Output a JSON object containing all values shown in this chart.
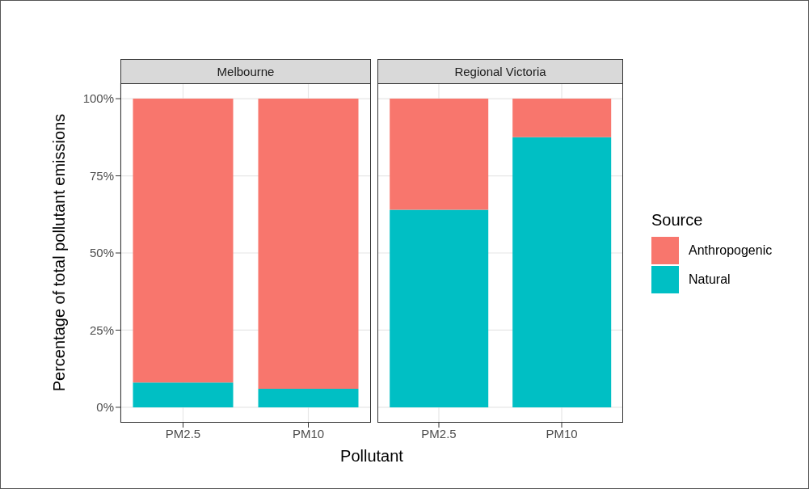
{
  "chart_data": [
    {
      "type": "bar",
      "title": "Melbourne",
      "xlabel": "Pollutant",
      "ylabel": "Percentage of total pollutant emissions",
      "categories": [
        "PM2.5",
        "PM10"
      ],
      "stacked": true,
      "series": [
        {
          "color": "#00bfc4",
          "values": [
            8,
            6
          ]
        },
        {
          "color": "#f8766d",
          "values": [
            92,
            94
          ]
        }
      ],
      "ylim": [
        -5,
        105
      ],
      "yticks": [
        {
          "value": 0,
          "label": "0%"
        },
        {
          "value": 25,
          "label": "25%"
        },
        {
          "value": 50,
          "label": "50%"
        },
        {
          "value": 75,
          "label": "75%"
        },
        {
          "value": 100,
          "label": "100%"
        }
      ],
      "grid": true,
      "legend": false
    },
    {
      "type": "bar",
      "title": "Regional Victoria",
      "categories": [
        "PM2.5",
        "PM10"
      ],
      "stacked": true,
      "series": [
        {
          "name": "Natural",
          "color": "#00bfc4",
          "values": [
            64,
            87.5
          ]
        },
        {
          "name": "Anthropogenic",
          "color": "#f8766d",
          "values": [
            36,
            12.5
          ]
        }
      ],
      "ylim": [
        -5,
        105
      ],
      "yticks": [
        0,
        25,
        50,
        75,
        100
      ],
      "grid": true,
      "tick_labels": "x",
      "legend": "right",
      "legend_title": "Source"
    }
  ]
}
